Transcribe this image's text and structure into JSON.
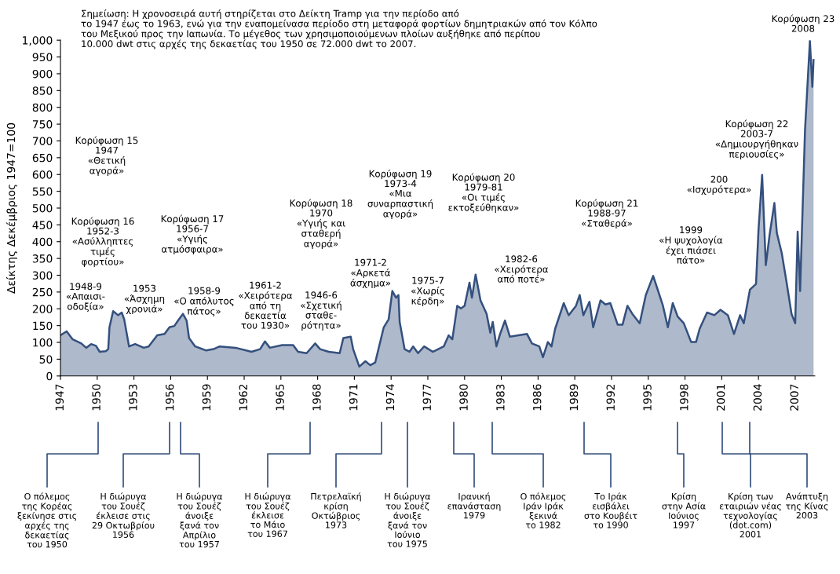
{
  "chart_data": {
    "type": "area",
    "ylabel": "Δείκτης Δεκέμβριος 1947=100",
    "xlim": [
      1947,
      2008.6
    ],
    "ylim": [
      0,
      1000
    ],
    "xticks": [
      1947,
      1950,
      1953,
      1956,
      1959,
      1962,
      1965,
      1968,
      1971,
      1974,
      1977,
      1980,
      1983,
      1986,
      1989,
      1992,
      1995,
      1998,
      2001,
      2004,
      2007
    ],
    "yticks": [
      0,
      50,
      100,
      150,
      200,
      250,
      300,
      350,
      400,
      450,
      500,
      550,
      600,
      650,
      700,
      750,
      800,
      850,
      900,
      950,
      {
        "value": 1000,
        "label": "1,000"
      }
    ],
    "grid": false,
    "legend": false,
    "series": [
      {
        "color": "#34507e",
        "x": [
          1947.0,
          1947.5,
          1948.0,
          1948.7,
          1949.1,
          1949.5,
          1949.9,
          1950.2,
          1950.7,
          1950.9,
          1951.0,
          1951.3,
          1951.7,
          1952.0,
          1952.2,
          1952.6,
          1953.1,
          1953.8,
          1954.2,
          1954.9,
          1955.5,
          1955.9,
          1956.3,
          1956.6,
          1957.0,
          1957.3,
          1957.5,
          1958.0,
          1958.9,
          1959.5,
          1960.0,
          1961.3,
          1962.6,
          1963.3,
          1963.7,
          1964.1,
          1965.1,
          1966.0,
          1966.4,
          1967.1,
          1967.8,
          1968.2,
          1968.9,
          1969.8,
          1970.1,
          1970.7,
          1970.9,
          1971.4,
          1971.9,
          1972.3,
          1972.7,
          1973.4,
          1973.8,
          1974.1,
          1974.4,
          1974.6,
          1974.7,
          1975.1,
          1975.5,
          1975.8,
          1976.2,
          1976.7,
          1977.4,
          1978.3,
          1978.7,
          1979.0,
          1979.4,
          1979.7,
          1980.0,
          1980.4,
          1980.6,
          1980.9,
          1981.3,
          1981.8,
          1982.1,
          1982.3,
          1982.6,
          1982.9,
          1983.3,
          1983.7,
          1984.4,
          1985.1,
          1985.5,
          1986.1,
          1986.4,
          1986.8,
          1987.1,
          1987.4,
          1988.1,
          1988.5,
          1989.1,
          1989.4,
          1989.7,
          1990.2,
          1990.5,
          1991.1,
          1991.5,
          1991.9,
          1992.5,
          1992.9,
          1993.3,
          1993.7,
          1994.3,
          1994.8,
          1995.4,
          1995.7,
          1996.2,
          1996.6,
          1997.0,
          1997.4,
          1997.9,
          1998.5,
          1998.9,
          1999.2,
          1999.8,
          2000.4,
          2000.9,
          2001.5,
          2002.0,
          2002.5,
          2002.8,
          2003.3,
          2003.8,
          2004.0,
          2004.3,
          2004.6,
          2004.9,
          2005.3,
          2005.5,
          2005.9,
          2006.3,
          2006.7,
          2007.0,
          2007.2,
          2007.4,
          2007.8,
          2008.2,
          2008.4,
          2008.5
        ],
        "values": [
          121,
          133,
          109,
          97,
          84,
          95,
          90,
          72,
          74,
          80,
          145,
          193,
          181,
          189,
          169,
          88,
          95,
          84,
          88,
          121,
          125,
          145,
          149,
          165,
          185,
          165,
          113,
          88,
          76,
          80,
          88,
          84,
          72,
          80,
          103,
          84,
          92,
          92,
          72,
          68,
          97,
          80,
          72,
          68,
          113,
          117,
          80,
          28,
          44,
          32,
          40,
          145,
          169,
          253,
          233,
          241,
          161,
          80,
          72,
          88,
          68,
          88,
          72,
          88,
          121,
          109,
          209,
          201,
          209,
          278,
          233,
          302,
          225,
          185,
          129,
          161,
          88,
          125,
          165,
          117,
          121,
          125,
          97,
          88,
          56,
          101,
          88,
          141,
          217,
          181,
          209,
          241,
          181,
          221,
          145,
          225,
          213,
          217,
          153,
          153,
          209,
          185,
          157,
          241,
          298,
          265,
          209,
          145,
          217,
          177,
          157,
          101,
          101,
          141,
          189,
          181,
          197,
          181,
          125,
          181,
          157,
          257,
          274,
          434,
          599,
          330,
          418,
          515,
          426,
          366,
          278,
          185,
          157,
          430,
          253,
          732,
          998,
          861,
          941
        ]
      }
    ],
    "annotations": [
      "Σημείωση: Η χρονοσειρά αυτή στηρίζεται στο Δείκτη Tramp για την περίοδο από\nτο 1947 έως το 1963, ενώ για την εναπομείνασα περίοδο στη μεταφορά φορτίων δημητριακών από τον Κόλπο\nτου Μεξικού προς την Ιαπωνία. Το μέγεθος των χρησιμοποιούμενων πλοίων αυξήθηκε από περίπου\n10.000 dwt στις αρχές της δεκαετίας του 1950 σε 72.000 dwt το 2007.",
      "Κορύφωση 15\n1947\n«Θετική\nαγορά»",
      "Κορύφωση 16\n1952-3\n«Ασύλληπτες\nτιμές\nφορτίου»",
      "1948-9\n«Απαισι-\nοδοξία»",
      "1953\n«Άσχημη\nχρονιά»",
      "Κορύφωση 17\n1956-7\n«Υγιής\nατμόσφαιρα»",
      "1958-9\n«Ο απόλυτος\nπάτος»",
      "1961-2\n«Χειρότερα\nαπό τη\nδεκαετία\nτου 1930»",
      "1946-6\n«Σχετική\nσταθε-\nρότητα»",
      "Κορύφωση 18\n1970\n«Υγιής και\nσταθερή\nαγορά»",
      "1971-2\n«Αρκετά\nάσχημα»",
      "Κορύφωση 19\n1973-4\n«Μια\nσυναρπαστική\nαγορά»",
      "1975-7\n«Χωρίς\nκέρδη»",
      "Κορύφωση 20\n1979-81\n«Οι τιμές\nεκτοξεύθηκαν»",
      "1982-6\n«Χειρότερα\nαπό ποτέ»",
      "Κορύφωση 21\n1988-97\n«Σταθερά»",
      "1999\n«Η ψυχολογία\nέχει πιάσει\nπάτο»",
      "200\n«Ισχυρότερα»",
      "Κορύφωση 22\n2003-7\n«Δημιουργήθηκαν\nπεριουσίες»",
      "Κορύφωση 23\n2008",
      "Ο πόλεμος\nτης Κορέας\nξεκίνησε στις\nαρχές της\nδεκαετίας\nτου 1950",
      "Η διώρυγα\nτου Σουέζ\nέκλεισε στις\n29 Οκτωβρίου\n1956",
      "Η διώρυγα\nτου Σουέζ\nάνοιξε\nξανά τον\nΑπρίλιο\nτου 1957",
      "Η διώρυγα\nτου Σουέζ\nέκλεισε\nτο Μάιο\nτου 1967",
      "Πετρελαϊκή\nκρίση\nΟκτώβριος\n1973",
      "Η διώρυγα\nτου Σουέζ\nάνοιξε\nξανά τον\nΙούνιο\nτου 1975",
      "Ιρανική\nεπανάσταση\n1979",
      "Ο πόλεμος\nΙράν Ιράκ\nξεκινά\nτο 1982",
      "Το Ιράκ\nεισβάλει\nστο Κουβέιτ\nτο 1990",
      "Κρίση\nστην Ασία\nΙούνιος\n1997",
      "Κρίση των\nεταιριών νέας\nτεχνολογίας\n(dot.com)\n2001",
      "Ανάπτυξη\nτης Κίνας\n2003"
    ]
  }
}
